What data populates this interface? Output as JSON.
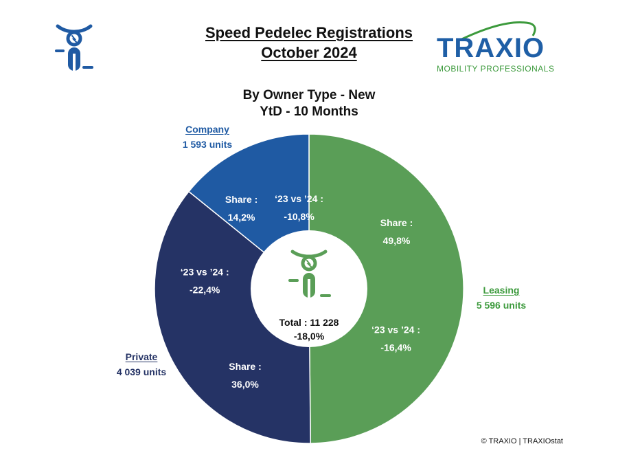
{
  "header": {
    "title_line1": "Speed Pedelec Registrations",
    "title_line2": "October 2024",
    "subtitle_line1": "By Owner Type - New",
    "subtitle_line2": "YtD - 10 Months"
  },
  "brand": {
    "name": "TRAXIO",
    "tagline": "MOBILITY PROFESSIONALS",
    "blue": "#1f5fa6",
    "green": "#3c9a3c"
  },
  "icons": [
    "speed-pedelec-icon",
    "traxio-logo"
  ],
  "chart_data": {
    "type": "pie",
    "style": "donut",
    "categories": [
      "Leasing",
      "Private",
      "Company"
    ],
    "series": [
      {
        "values": [
          5596,
          4039,
          1593
        ],
        "units_labels": [
          "5 596 units",
          "4 039 units",
          "1 593 units"
        ],
        "share_labels": [
          "49,8%",
          "36,0%",
          "14,2%"
        ],
        "change_labels": [
          "-16,4%",
          "-22,4%",
          "-10,8%"
        ],
        "colors": [
          "#5a9e57",
          "#253365",
          "#1f5aa3"
        ]
      }
    ],
    "share_prefix": "Share :",
    "change_prefix": "‘23 vs ’24 :",
    "center": {
      "total_label": "Total : 11 228",
      "total_change": "-18,0%",
      "icon": "speed-pedelec-icon",
      "icon_color": "#5a9e57"
    },
    "label_colors": [
      "#3c9a3c",
      "#253365",
      "#1f5aa3"
    ],
    "start_angle_deg": 0,
    "direction": "clockwise"
  },
  "footer": {
    "copyright": "© TRAXIO | TRAXIOstat"
  }
}
